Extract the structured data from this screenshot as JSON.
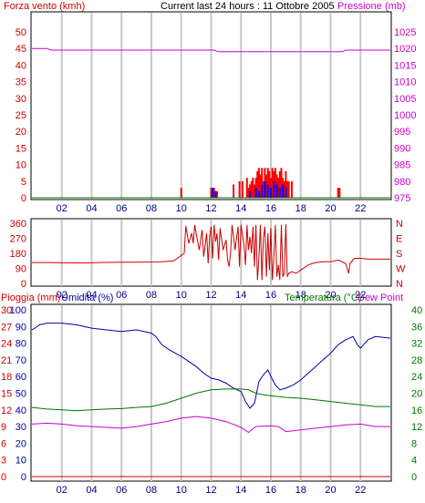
{
  "header": {
    "left_title": "Forza vento (kmh)",
    "center_title": "Current last 24 hours : 11 Ottobre 2005",
    "right_title": "Pressione (mb)"
  },
  "colors": {
    "frame": "#000000",
    "grid": "#c8c8c8",
    "wind_axis": "#cc0000",
    "pressure": "#cc00cc",
    "direction": "#cc0000",
    "humidity": "#0000aa",
    "temperature": "#007700",
    "dew_point": "#cc00cc",
    "rain": "#cc0000",
    "gust_bar": "#ff0000",
    "avg_bar": "#0000ff"
  },
  "chart_data": [
    {
      "type": "bar",
      "title": "Current last 24 hours : 11 Ottobre 2005",
      "ylabel": "Forza vento (kmh)",
      "y2label": "Pressione (mb)",
      "xlim": [
        0,
        24
      ],
      "ylim": [
        0,
        50
      ],
      "y2lim": [
        975,
        1025
      ],
      "x_ticks": [
        "02",
        "04",
        "06",
        "08",
        "10",
        "12",
        "14",
        "16",
        "18",
        "20",
        "22"
      ],
      "x_tick_hours": [
        2,
        4,
        6,
        8,
        10,
        12,
        14,
        16,
        18,
        20,
        22
      ],
      "y_ticks": [
        "0",
        "5",
        "10",
        "15",
        "20",
        "25",
        "30",
        "35",
        "40",
        "45",
        "50"
      ],
      "y2_ticks": [
        "975",
        "980",
        "985",
        "990",
        "995",
        "1000",
        "1005",
        "1010",
        "1015",
        "1020",
        "1025"
      ],
      "grid": "vertical",
      "wind_gust": [
        {
          "h": 10.0,
          "v": 3
        },
        {
          "h": 12.0,
          "v": 3
        },
        {
          "h": 12.1,
          "v": 3
        },
        {
          "h": 12.2,
          "v": 3
        },
        {
          "h": 12.4,
          "v": 2
        },
        {
          "h": 13.5,
          "v": 4
        },
        {
          "h": 13.9,
          "v": 5
        },
        {
          "h": 14.1,
          "v": 5
        },
        {
          "h": 14.4,
          "v": 6
        },
        {
          "h": 14.5,
          "v": 3
        },
        {
          "h": 14.6,
          "v": 4
        },
        {
          "h": 14.7,
          "v": 5
        },
        {
          "h": 14.8,
          "v": 6
        },
        {
          "h": 14.9,
          "v": 4
        },
        {
          "h": 15.0,
          "v": 6
        },
        {
          "h": 15.1,
          "v": 8
        },
        {
          "h": 15.2,
          "v": 9
        },
        {
          "h": 15.3,
          "v": 7
        },
        {
          "h": 15.4,
          "v": 9
        },
        {
          "h": 15.5,
          "v": 5
        },
        {
          "h": 15.6,
          "v": 9
        },
        {
          "h": 15.7,
          "v": 7
        },
        {
          "h": 15.8,
          "v": 9
        },
        {
          "h": 15.9,
          "v": 8
        },
        {
          "h": 16.0,
          "v": 6
        },
        {
          "h": 16.1,
          "v": 9
        },
        {
          "h": 16.2,
          "v": 8
        },
        {
          "h": 16.3,
          "v": 9
        },
        {
          "h": 16.4,
          "v": 7
        },
        {
          "h": 16.5,
          "v": 6
        },
        {
          "h": 16.6,
          "v": 8
        },
        {
          "h": 16.7,
          "v": 9
        },
        {
          "h": 16.8,
          "v": 6
        },
        {
          "h": 16.9,
          "v": 5
        },
        {
          "h": 17.0,
          "v": 8
        },
        {
          "h": 17.1,
          "v": 5
        },
        {
          "h": 17.2,
          "v": 5
        },
        {
          "h": 17.4,
          "v": 5
        },
        {
          "h": 20.5,
          "v": 3
        },
        {
          "h": 20.6,
          "v": 3
        }
      ],
      "wind_avg": [
        {
          "h": 12.1,
          "v": 3
        },
        {
          "h": 12.3,
          "v": 2
        },
        {
          "h": 14.6,
          "v": 2
        },
        {
          "h": 15.0,
          "v": 3
        },
        {
          "h": 15.2,
          "v": 2
        },
        {
          "h": 15.4,
          "v": 4
        },
        {
          "h": 15.6,
          "v": 5
        },
        {
          "h": 15.8,
          "v": 4
        },
        {
          "h": 16.0,
          "v": 3
        },
        {
          "h": 16.2,
          "v": 5
        },
        {
          "h": 16.4,
          "v": 4
        },
        {
          "h": 16.6,
          "v": 3
        },
        {
          "h": 16.8,
          "v": 4
        },
        {
          "h": 17.0,
          "v": 3
        }
      ],
      "pressure": [
        [
          0,
          1020
        ],
        [
          1.0,
          1020
        ],
        [
          1.3,
          1019.5
        ],
        [
          12.2,
          1019.5
        ],
        [
          12.5,
          1019
        ],
        [
          20.8,
          1019
        ],
        [
          21.0,
          1019.5
        ],
        [
          24,
          1019.5
        ]
      ]
    },
    {
      "type": "line",
      "ylim": [
        0,
        360
      ],
      "y_ticks": [
        "0",
        "90",
        "180",
        "270",
        "360"
      ],
      "y2_ticks": [
        "N",
        "W",
        "S",
        "E",
        "N"
      ],
      "x_ticks": [
        "02",
        "04",
        "06",
        "08",
        "10",
        "12",
        "14",
        "16",
        "18",
        "20",
        "22"
      ],
      "grid": "vertical",
      "direction": [
        [
          0,
          125
        ],
        [
          1.0,
          125
        ],
        [
          3.5,
          122
        ],
        [
          4.5,
          125
        ],
        [
          8.5,
          128
        ],
        [
          9.5,
          135
        ],
        [
          10.2,
          180
        ],
        [
          10.3,
          345
        ],
        [
          10.5,
          240
        ],
        [
          10.7,
          300
        ],
        [
          10.8,
          240
        ],
        [
          10.9,
          350
        ],
        [
          11.0,
          300
        ],
        [
          11.2,
          200
        ],
        [
          11.4,
          320
        ],
        [
          11.5,
          160
        ],
        [
          11.7,
          300
        ],
        [
          11.8,
          120
        ],
        [
          11.9,
          280
        ],
        [
          12.0,
          340
        ],
        [
          12.1,
          150
        ],
        [
          12.2,
          350
        ],
        [
          12.3,
          250
        ],
        [
          12.4,
          300
        ],
        [
          12.5,
          140
        ],
        [
          12.6,
          330
        ],
        [
          12.8,
          200
        ],
        [
          13.0,
          260
        ],
        [
          13.1,
          140
        ],
        [
          13.2,
          100
        ],
        [
          13.3,
          180
        ],
        [
          13.4,
          350
        ],
        [
          13.5,
          280
        ],
        [
          13.6,
          200
        ],
        [
          13.8,
          340
        ],
        [
          13.9,
          100
        ],
        [
          14.0,
          350
        ],
        [
          14.1,
          290
        ],
        [
          14.2,
          230
        ],
        [
          14.3,
          110
        ],
        [
          14.4,
          350
        ],
        [
          14.5,
          200
        ],
        [
          14.6,
          280
        ],
        [
          14.7,
          180
        ],
        [
          14.8,
          340
        ],
        [
          14.9,
          100
        ],
        [
          15.0,
          350
        ],
        [
          15.1,
          20
        ],
        [
          15.2,
          150
        ],
        [
          15.3,
          350
        ],
        [
          15.4,
          20
        ],
        [
          15.5,
          270
        ],
        [
          15.6,
          340
        ],
        [
          15.7,
          40
        ],
        [
          15.8,
          300
        ],
        [
          15.9,
          80
        ],
        [
          16.0,
          330
        ],
        [
          16.1,
          20
        ],
        [
          16.2,
          160
        ],
        [
          16.3,
          350
        ],
        [
          16.4,
          40
        ],
        [
          16.5,
          110
        ],
        [
          16.6,
          20
        ],
        [
          16.7,
          350
        ],
        [
          16.8,
          40
        ],
        [
          16.9,
          60
        ],
        [
          17.0,
          355
        ],
        [
          17.1,
          40
        ],
        [
          17.2,
          60
        ],
        [
          17.4,
          70
        ],
        [
          17.7,
          60
        ],
        [
          18.0,
          80
        ],
        [
          18.5,
          110
        ],
        [
          18.8,
          120
        ],
        [
          19.0,
          125
        ],
        [
          19.5,
          130
        ],
        [
          20.0,
          130
        ],
        [
          20.5,
          140
        ],
        [
          21.0,
          120
        ],
        [
          21.2,
          60
        ],
        [
          21.3,
          120
        ],
        [
          21.6,
          150
        ],
        [
          22.0,
          150
        ],
        [
          22.5,
          145
        ],
        [
          24,
          145
        ]
      ]
    },
    {
      "type": "line",
      "labels": {
        "rain": "Pioggia (mm)",
        "humidity": "Umidita (%)",
        "temperature": "Temperatura (°C)",
        "dew_point": "Dew Point"
      },
      "rain_ticks": [
        "0",
        "3",
        "6",
        "9",
        "12",
        "15",
        "18",
        "21",
        "24",
        "27",
        "30"
      ],
      "humidity_ticks": [
        "0",
        "10",
        "20",
        "30",
        "40",
        "50",
        "60",
        "70",
        "80",
        "90",
        "100"
      ],
      "temperature_ticks": [
        "0",
        "4",
        "8",
        "12",
        "16",
        "20",
        "24",
        "28",
        "32",
        "36",
        "40"
      ],
      "x_ticks": [
        "02",
        "04",
        "06",
        "08",
        "10",
        "12",
        "14",
        "16",
        "18",
        "20",
        "22"
      ],
      "rain_ylim": [
        0,
        30
      ],
      "humidity_ylim": [
        0,
        100
      ],
      "temperature_ylim": [
        0,
        40
      ],
      "grid": "vertical",
      "humidity": [
        [
          0,
          88
        ],
        [
          0.2,
          89
        ],
        [
          0.5,
          91
        ],
        [
          1.0,
          92
        ],
        [
          2.0,
          92
        ],
        [
          3.0,
          91
        ],
        [
          4.0,
          89
        ],
        [
          5.0,
          88
        ],
        [
          6.0,
          87
        ],
        [
          7.0,
          88
        ],
        [
          7.5,
          87
        ],
        [
          8.0,
          86
        ],
        [
          8.3,
          84
        ],
        [
          8.7,
          79
        ],
        [
          9.2,
          76
        ],
        [
          10.0,
          72
        ],
        [
          10.5,
          69
        ],
        [
          11.0,
          66
        ],
        [
          11.5,
          62
        ],
        [
          12.0,
          59
        ],
        [
          12.5,
          58
        ],
        [
          13.0,
          56
        ],
        [
          13.5,
          53
        ],
        [
          14.0,
          51
        ],
        [
          14.3,
          45
        ],
        [
          14.6,
          41
        ],
        [
          14.9,
          44
        ],
        [
          15.2,
          57
        ],
        [
          15.5,
          61
        ],
        [
          15.8,
          64
        ],
        [
          16.0,
          60
        ],
        [
          16.3,
          55
        ],
        [
          16.6,
          52
        ],
        [
          17.0,
          53
        ],
        [
          17.5,
          55
        ],
        [
          18.0,
          58
        ],
        [
          18.5,
          62
        ],
        [
          19.0,
          66
        ],
        [
          19.5,
          70
        ],
        [
          20.0,
          74
        ],
        [
          20.5,
          79
        ],
        [
          21.0,
          82
        ],
        [
          21.5,
          84
        ],
        [
          21.8,
          79
        ],
        [
          22.0,
          77
        ],
        [
          22.5,
          82
        ],
        [
          23.0,
          84
        ],
        [
          24,
          83
        ]
      ],
      "temperature": [
        [
          0,
          16.6
        ],
        [
          1.0,
          16.2
        ],
        [
          2.0,
          16.0
        ],
        [
          3.0,
          15.8
        ],
        [
          4.0,
          16.0
        ],
        [
          5.0,
          16.2
        ],
        [
          6.0,
          16.3
        ],
        [
          7.0,
          16.6
        ],
        [
          8.0,
          16.8
        ],
        [
          9.0,
          17.6
        ],
        [
          10.0,
          18.8
        ],
        [
          11.0,
          20.0
        ],
        [
          12.0,
          20.8
        ],
        [
          13.0,
          21.0
        ],
        [
          14.0,
          21.0
        ],
        [
          14.5,
          20.8
        ],
        [
          15.0,
          20.0
        ],
        [
          15.5,
          19.6
        ],
        [
          16.0,
          19.4
        ],
        [
          17.0,
          19.0
        ],
        [
          18.0,
          18.8
        ],
        [
          19.0,
          18.4
        ],
        [
          20.0,
          18.0
        ],
        [
          21.0,
          17.6
        ],
        [
          22.0,
          17.2
        ],
        [
          23.0,
          16.8
        ],
        [
          24,
          16.8
        ]
      ],
      "dew_point": [
        [
          0,
          12.6
        ],
        [
          1.0,
          12.8
        ],
        [
          2.0,
          12.6
        ],
        [
          3.0,
          12.2
        ],
        [
          4.0,
          12.0
        ],
        [
          5.0,
          11.8
        ],
        [
          6.0,
          11.6
        ],
        [
          7.0,
          12.0
        ],
        [
          8.0,
          12.6
        ],
        [
          9.0,
          13.2
        ],
        [
          10.0,
          14.0
        ],
        [
          11.0,
          14.4
        ],
        [
          12.0,
          14.0
        ],
        [
          13.0,
          13.2
        ],
        [
          14.0,
          11.8
        ],
        [
          14.5,
          10.6
        ],
        [
          15.0,
          12.0
        ],
        [
          16.0,
          12.2
        ],
        [
          16.5,
          12.0
        ],
        [
          17.0,
          10.8
        ],
        [
          17.5,
          11.0
        ],
        [
          18.0,
          11.2
        ],
        [
          19.0,
          11.6
        ],
        [
          20.0,
          12.0
        ],
        [
          21.0,
          12.4
        ],
        [
          22.0,
          12.6
        ],
        [
          23.0,
          12.0
        ],
        [
          24,
          12.0
        ]
      ],
      "rain": [
        [
          0,
          0
        ],
        [
          24,
          0
        ]
      ]
    }
  ]
}
